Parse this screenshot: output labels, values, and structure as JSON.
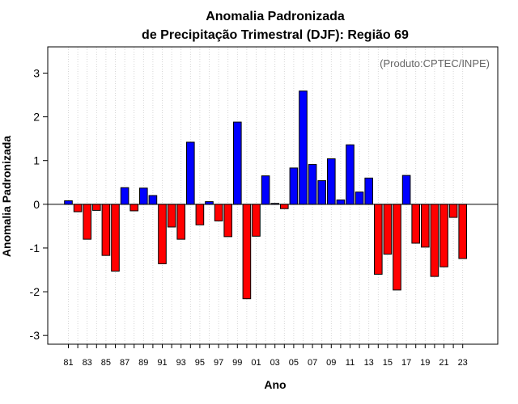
{
  "chart_data": {
    "type": "bar",
    "title_line1": "Anomalia Padronizada",
    "title_line2": "de Precipitação Trimestral (DJF): Região 69",
    "xlabel": "Ano",
    "ylabel": "Anomalia Padronizada",
    "credit": "(Produto:CPTEC/INPE)",
    "ylim": [
      -3.2,
      3.6
    ],
    "yticks": [
      -3,
      -2,
      -1,
      0,
      1,
      2,
      3
    ],
    "ytick_labels": [
      "-3",
      "-2",
      "-1",
      "0",
      "1",
      "2",
      "3"
    ],
    "grid": "vertical dotted",
    "positive_color": "#0000ff",
    "negative_color": "#ff0000",
    "xtick_labels": [
      "81",
      "83",
      "85",
      "87",
      "89",
      "91",
      "93",
      "95",
      "97",
      "99",
      "01",
      "03",
      "05",
      "07",
      "09",
      "11",
      "13",
      "15",
      "17",
      "19",
      "21",
      "23"
    ],
    "categories": [
      "81",
      "82",
      "83",
      "84",
      "85",
      "86",
      "87",
      "88",
      "89",
      "90",
      "91",
      "92",
      "93",
      "94",
      "95",
      "96",
      "97",
      "98",
      "99",
      "00",
      "01",
      "02",
      "03",
      "04",
      "05",
      "06",
      "07",
      "08",
      "09",
      "10",
      "11",
      "12",
      "13",
      "14",
      "15",
      "16",
      "17",
      "18",
      "19",
      "20",
      "21",
      "22",
      "23"
    ],
    "values": [
      0.08,
      -0.17,
      -0.8,
      -0.14,
      -1.17,
      -1.53,
      0.38,
      -0.15,
      0.37,
      0.2,
      -1.36,
      -0.52,
      -0.8,
      1.42,
      -0.47,
      0.06,
      -0.38,
      -0.74,
      1.88,
      -2.16,
      -0.73,
      0.65,
      0.02,
      -0.1,
      0.83,
      2.59,
      0.91,
      0.54,
      1.04,
      0.1,
      1.36,
      0.28,
      0.6,
      -1.6,
      -1.14,
      -1.96,
      0.66,
      -0.89,
      -0.98,
      -1.65,
      -1.43,
      -0.3,
      -1.24
    ]
  }
}
